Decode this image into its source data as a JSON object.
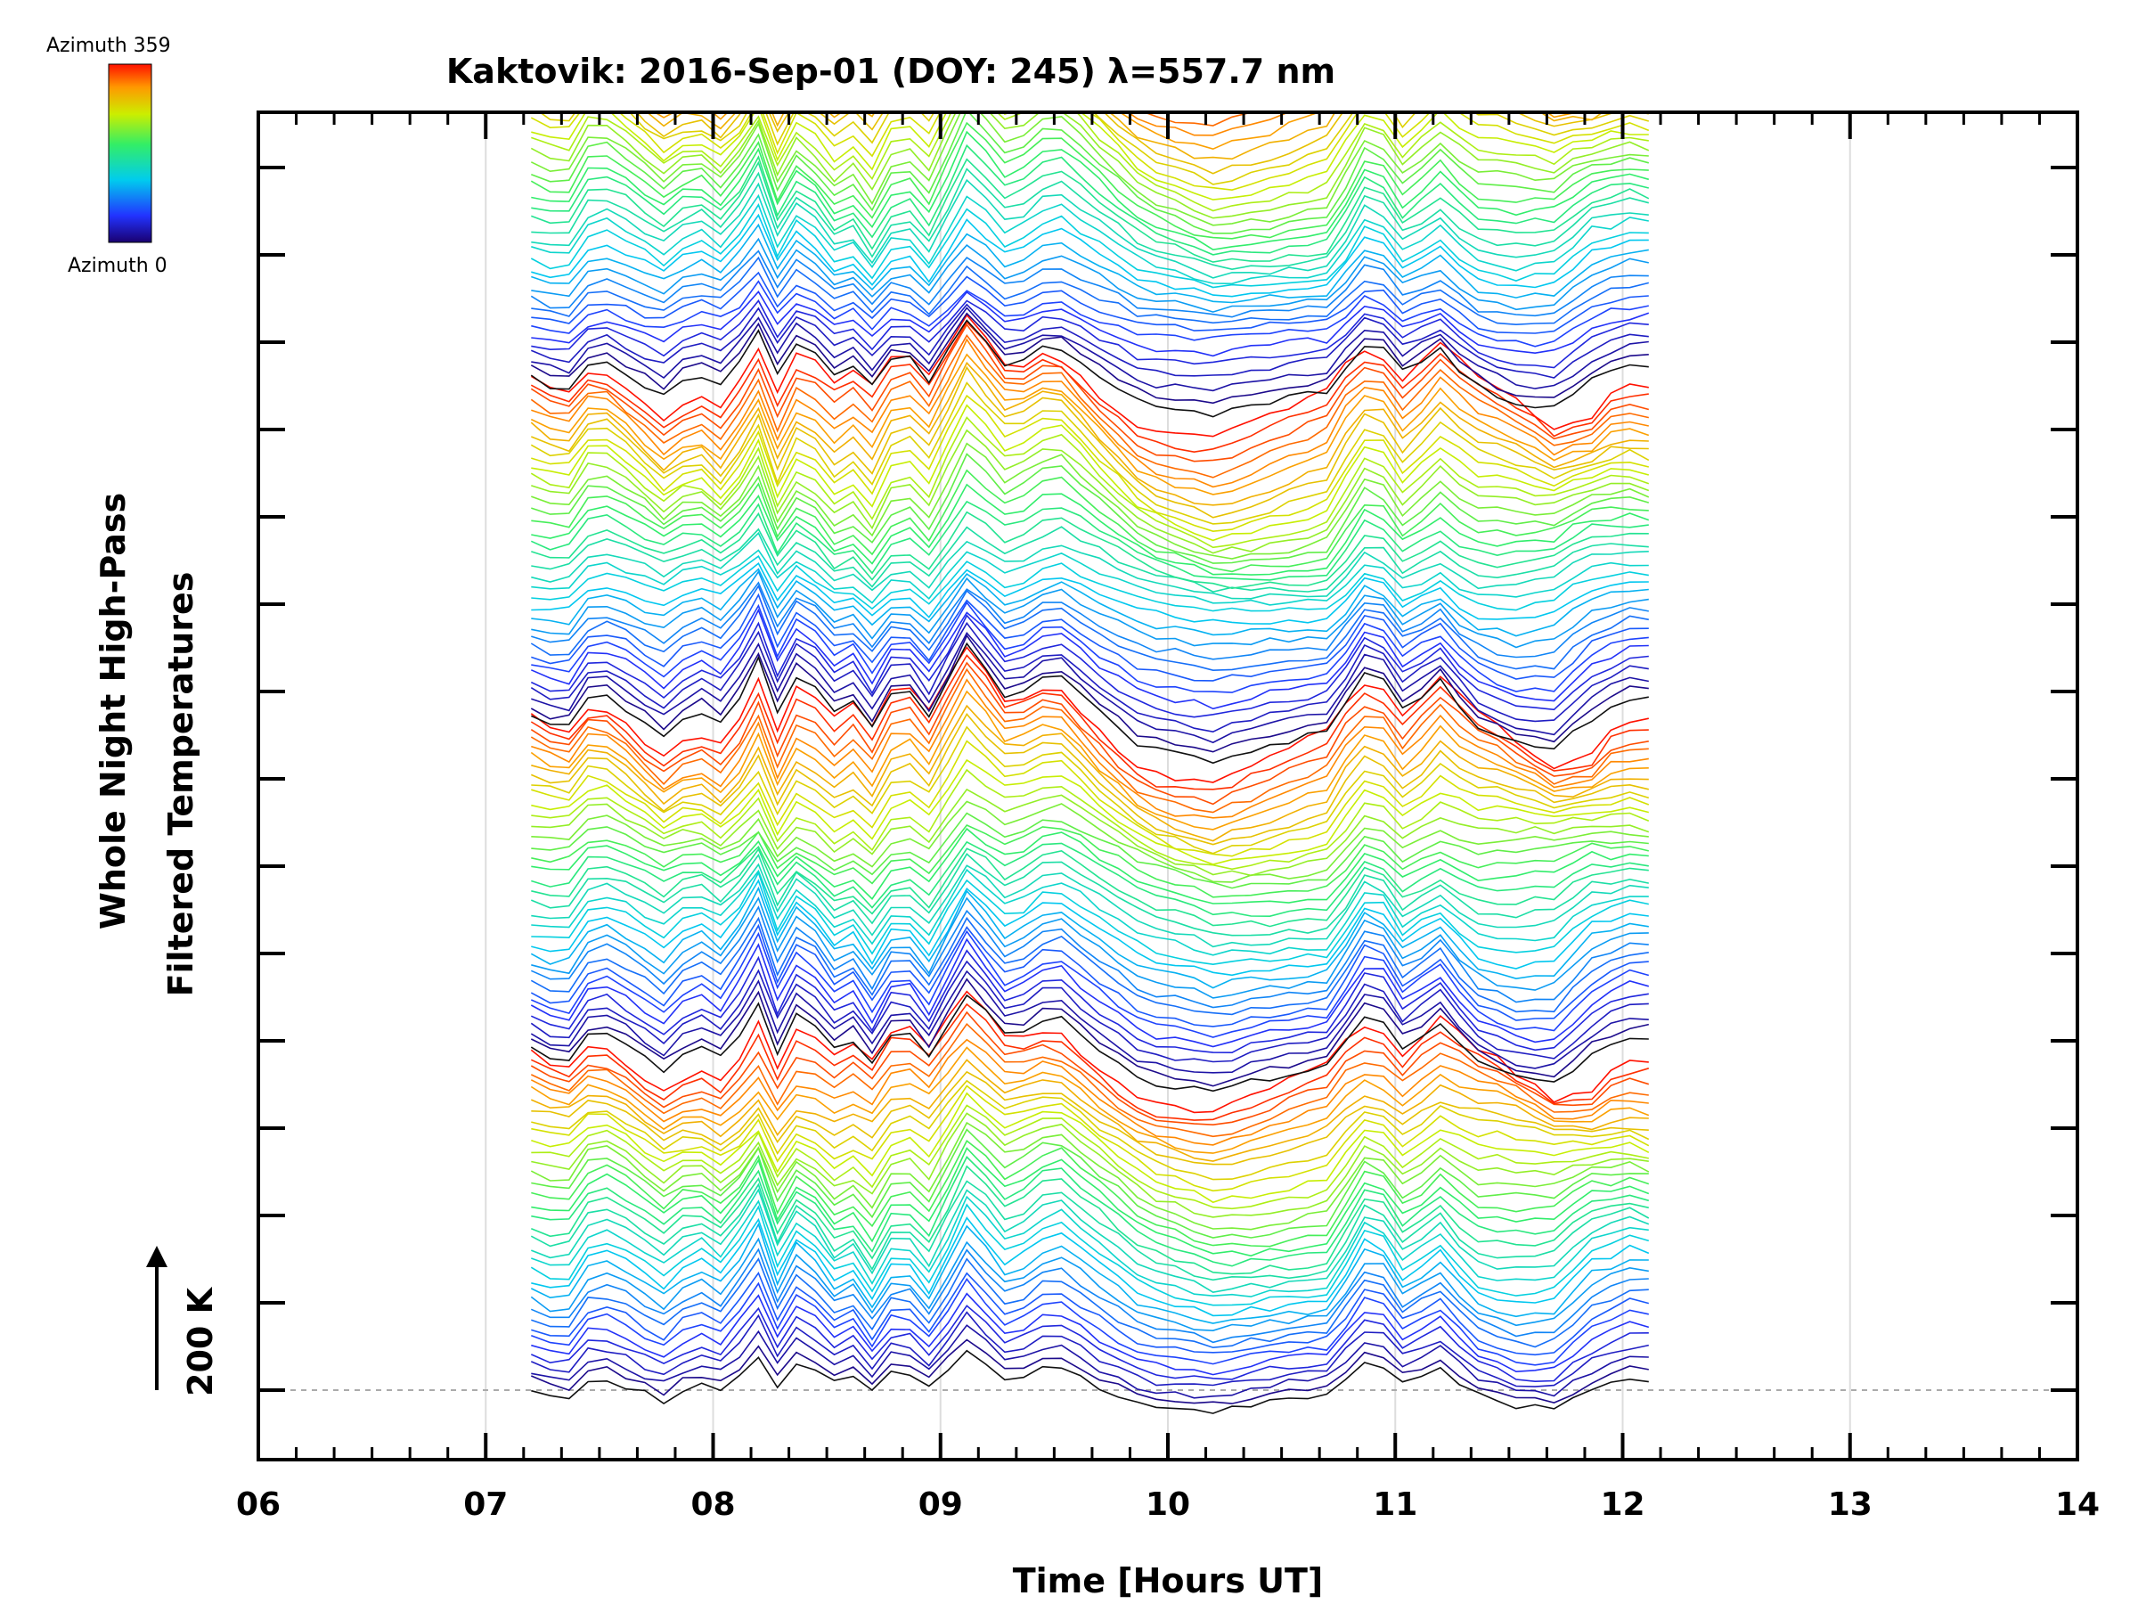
{
  "chart_data": {
    "type": "line",
    "title": "Kaktovik: 2016-Sep-01 (DOY: 245) λ=557.7 nm",
    "xlabel": "Time [Hours UT]",
    "ylabel_line1": "Whole Night High-Pass",
    "ylabel_line2": "Filtered Temperatures",
    "xlim": [
      6,
      14
    ],
    "x_ticks": [
      "06",
      "07",
      "08",
      "09",
      "10",
      "11",
      "12",
      "13",
      "14"
    ],
    "scale_label": "200 K",
    "colorbar": {
      "top_label": "Azimuth 359",
      "bottom_label": "Azimuth 0",
      "colormap": "rainbow"
    },
    "time_start": 7.2,
    "time_end": 12.17,
    "time_step": 0.0833,
    "description": "Stacked keogram-style traces of high-pass filtered temperatures; each trace is one azimuth sample offset vertically; color encodes azimuth (0 blue to 359 red).",
    "base_profile": [
      {
        "t": 7.2,
        "v": 0
      },
      {
        "t": 7.35,
        "v": -20
      },
      {
        "t": 7.48,
        "v": 35
      },
      {
        "t": 7.62,
        "v": 10
      },
      {
        "t": 7.78,
        "v": -25
      },
      {
        "t": 7.92,
        "v": 10
      },
      {
        "t": 8.05,
        "v": -15
      },
      {
        "t": 8.2,
        "v": 60
      },
      {
        "t": 8.3,
        "v": -20
      },
      {
        "t": 8.4,
        "v": 70
      },
      {
        "t": 8.5,
        "v": -25
      },
      {
        "t": 8.58,
        "v": 20
      },
      {
        "t": 8.7,
        "v": -25
      },
      {
        "t": 8.82,
        "v": 35
      },
      {
        "t": 8.95,
        "v": -10
      },
      {
        "t": 9.12,
        "v": 80
      },
      {
        "t": 9.3,
        "v": 15
      },
      {
        "t": 9.5,
        "v": 55
      },
      {
        "t": 9.7,
        "v": 5
      },
      {
        "t": 9.9,
        "v": -40
      },
      {
        "t": 10.2,
        "v": -60
      },
      {
        "t": 10.45,
        "v": -45
      },
      {
        "t": 10.7,
        "v": -30
      },
      {
        "t": 10.9,
        "v": 55
      },
      {
        "t": 11.05,
        "v": -5
      },
      {
        "t": 11.18,
        "v": 45
      },
      {
        "t": 11.35,
        "v": -10
      },
      {
        "t": 11.55,
        "v": -35
      },
      {
        "t": 11.7,
        "v": -40
      },
      {
        "t": 11.85,
        "v": -5
      },
      {
        "t": 12.0,
        "v": 20
      },
      {
        "t": 12.17,
        "v": 15
      }
    ]
  }
}
